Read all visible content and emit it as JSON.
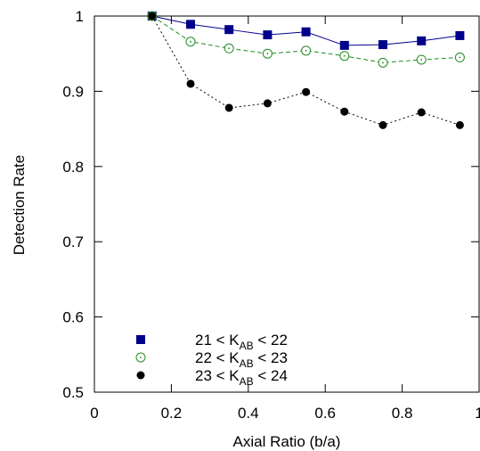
{
  "chart_data": {
    "type": "line",
    "title": "",
    "xlabel": "Axial Ratio (b/a)",
    "ylabel": "Detection Rate",
    "xlim": [
      0,
      1
    ],
    "ylim": [
      0.5,
      1
    ],
    "xticks": [
      0,
      0.2,
      0.4,
      0.6,
      0.8,
      1
    ],
    "yticks": [
      0.5,
      0.6,
      0.7,
      0.8,
      0.9,
      1
    ],
    "xtick_labels": [
      "0",
      "0.2",
      "0.4",
      "0.6",
      "0.8",
      "1"
    ],
    "ytick_labels": [
      "0.5",
      "0.6",
      "0.7",
      "0.8",
      "0.9",
      "1"
    ],
    "grid": false,
    "legend_position": "bottom-left",
    "x": [
      0.15,
      0.25,
      0.35,
      0.45,
      0.55,
      0.65,
      0.75,
      0.85,
      0.95
    ],
    "series": [
      {
        "name_pre": "21 < K",
        "name_sub": "AB",
        "name_post": " < 22",
        "values": [
          1.0,
          0.989,
          0.982,
          0.975,
          0.979,
          0.961,
          0.962,
          0.967,
          0.974
        ],
        "color": "#00008B",
        "marker": "square",
        "line": "solid"
      },
      {
        "name_pre": "22 < K",
        "name_sub": "AB",
        "name_post": " < 23",
        "values": [
          1.0,
          0.966,
          0.957,
          0.95,
          0.954,
          0.947,
          0.938,
          0.942,
          0.945
        ],
        "color": "#228B22",
        "marker": "open-circle",
        "line": "dashed"
      },
      {
        "name_pre": "23 < K",
        "name_sub": "AB",
        "name_post": " < 24",
        "values": [
          1.0,
          0.91,
          0.878,
          0.884,
          0.899,
          0.873,
          0.855,
          0.872,
          0.855
        ],
        "color": "#000000",
        "marker": "filled-circle",
        "line": "dotted"
      }
    ]
  }
}
